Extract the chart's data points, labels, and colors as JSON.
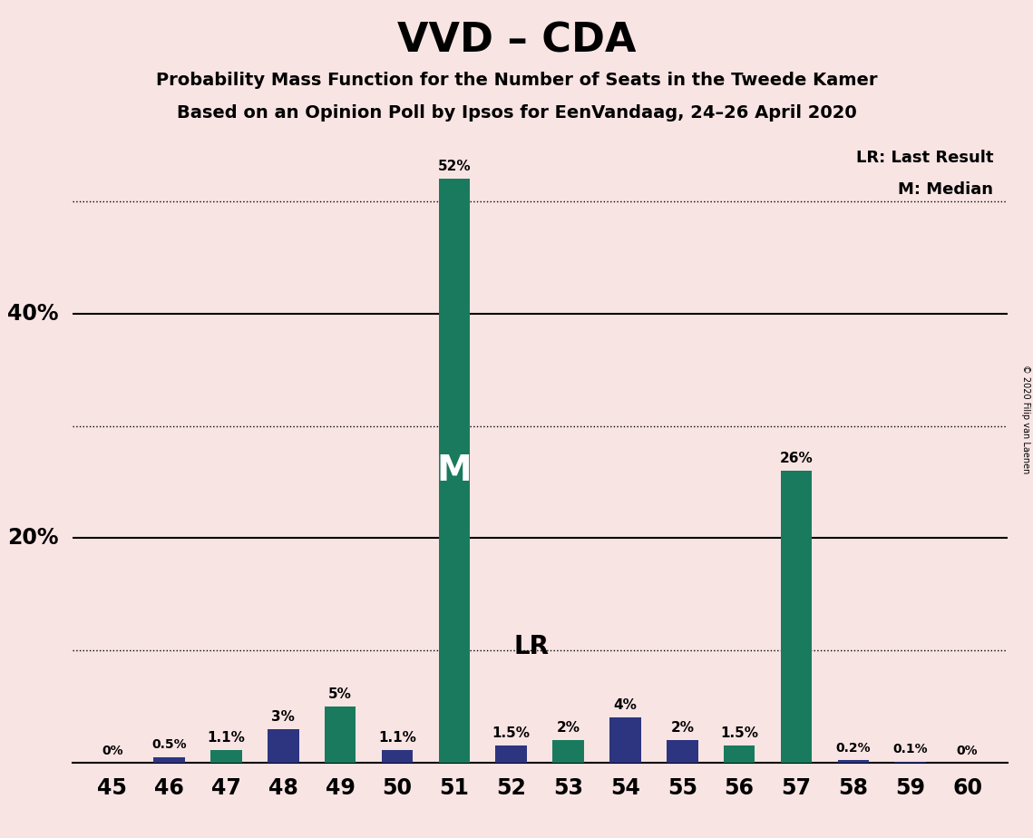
{
  "title": "VVD – CDA",
  "subtitle1": "Probability Mass Function for the Number of Seats in the Tweede Kamer",
  "subtitle2": "Based on an Opinion Poll by Ipsos for EenVandaag, 24–26 April 2020",
  "copyright": "© 2020 Filip van Laenen",
  "seats": [
    45,
    46,
    47,
    48,
    49,
    50,
    51,
    52,
    53,
    54,
    55,
    56,
    57,
    58,
    59,
    60
  ],
  "values": [
    0.0,
    0.5,
    1.1,
    3.0,
    5.0,
    1.1,
    52.0,
    1.5,
    2.0,
    4.0,
    2.0,
    1.5,
    26.0,
    0.2,
    0.1,
    0.0
  ],
  "colors": [
    "#2D3580",
    "#2D3580",
    "#1A7A5E",
    "#2D3580",
    "#1A7A5E",
    "#2D3580",
    "#1A7A5E",
    "#2D3580",
    "#1A7A5E",
    "#2D3580",
    "#2D3580",
    "#1A7A5E",
    "#1A7A5E",
    "#2D3580",
    "#2D3580",
    "#2D3580"
  ],
  "labels": [
    "0%",
    "0.5%",
    "1.1%",
    "3%",
    "5%",
    "1.1%",
    "52%",
    "1.5%",
    "2%",
    "4%",
    "2%",
    "1.5%",
    "26%",
    "0.2%",
    "0.1%",
    "0%"
  ],
  "vvd_color": "#2D3580",
  "cda_color": "#1A7A5E",
  "background_color": "#F9E4E4",
  "median_seat": 51,
  "lr_seat": 52,
  "ylim": [
    0,
    56
  ],
  "solid_gridlines": [
    20.0,
    40.0
  ],
  "dotted_gridlines": [
    10.0,
    30.0,
    50.0
  ],
  "legend_lr": "LR: Last Result",
  "legend_m": "M: Median",
  "bar_width": 0.55
}
